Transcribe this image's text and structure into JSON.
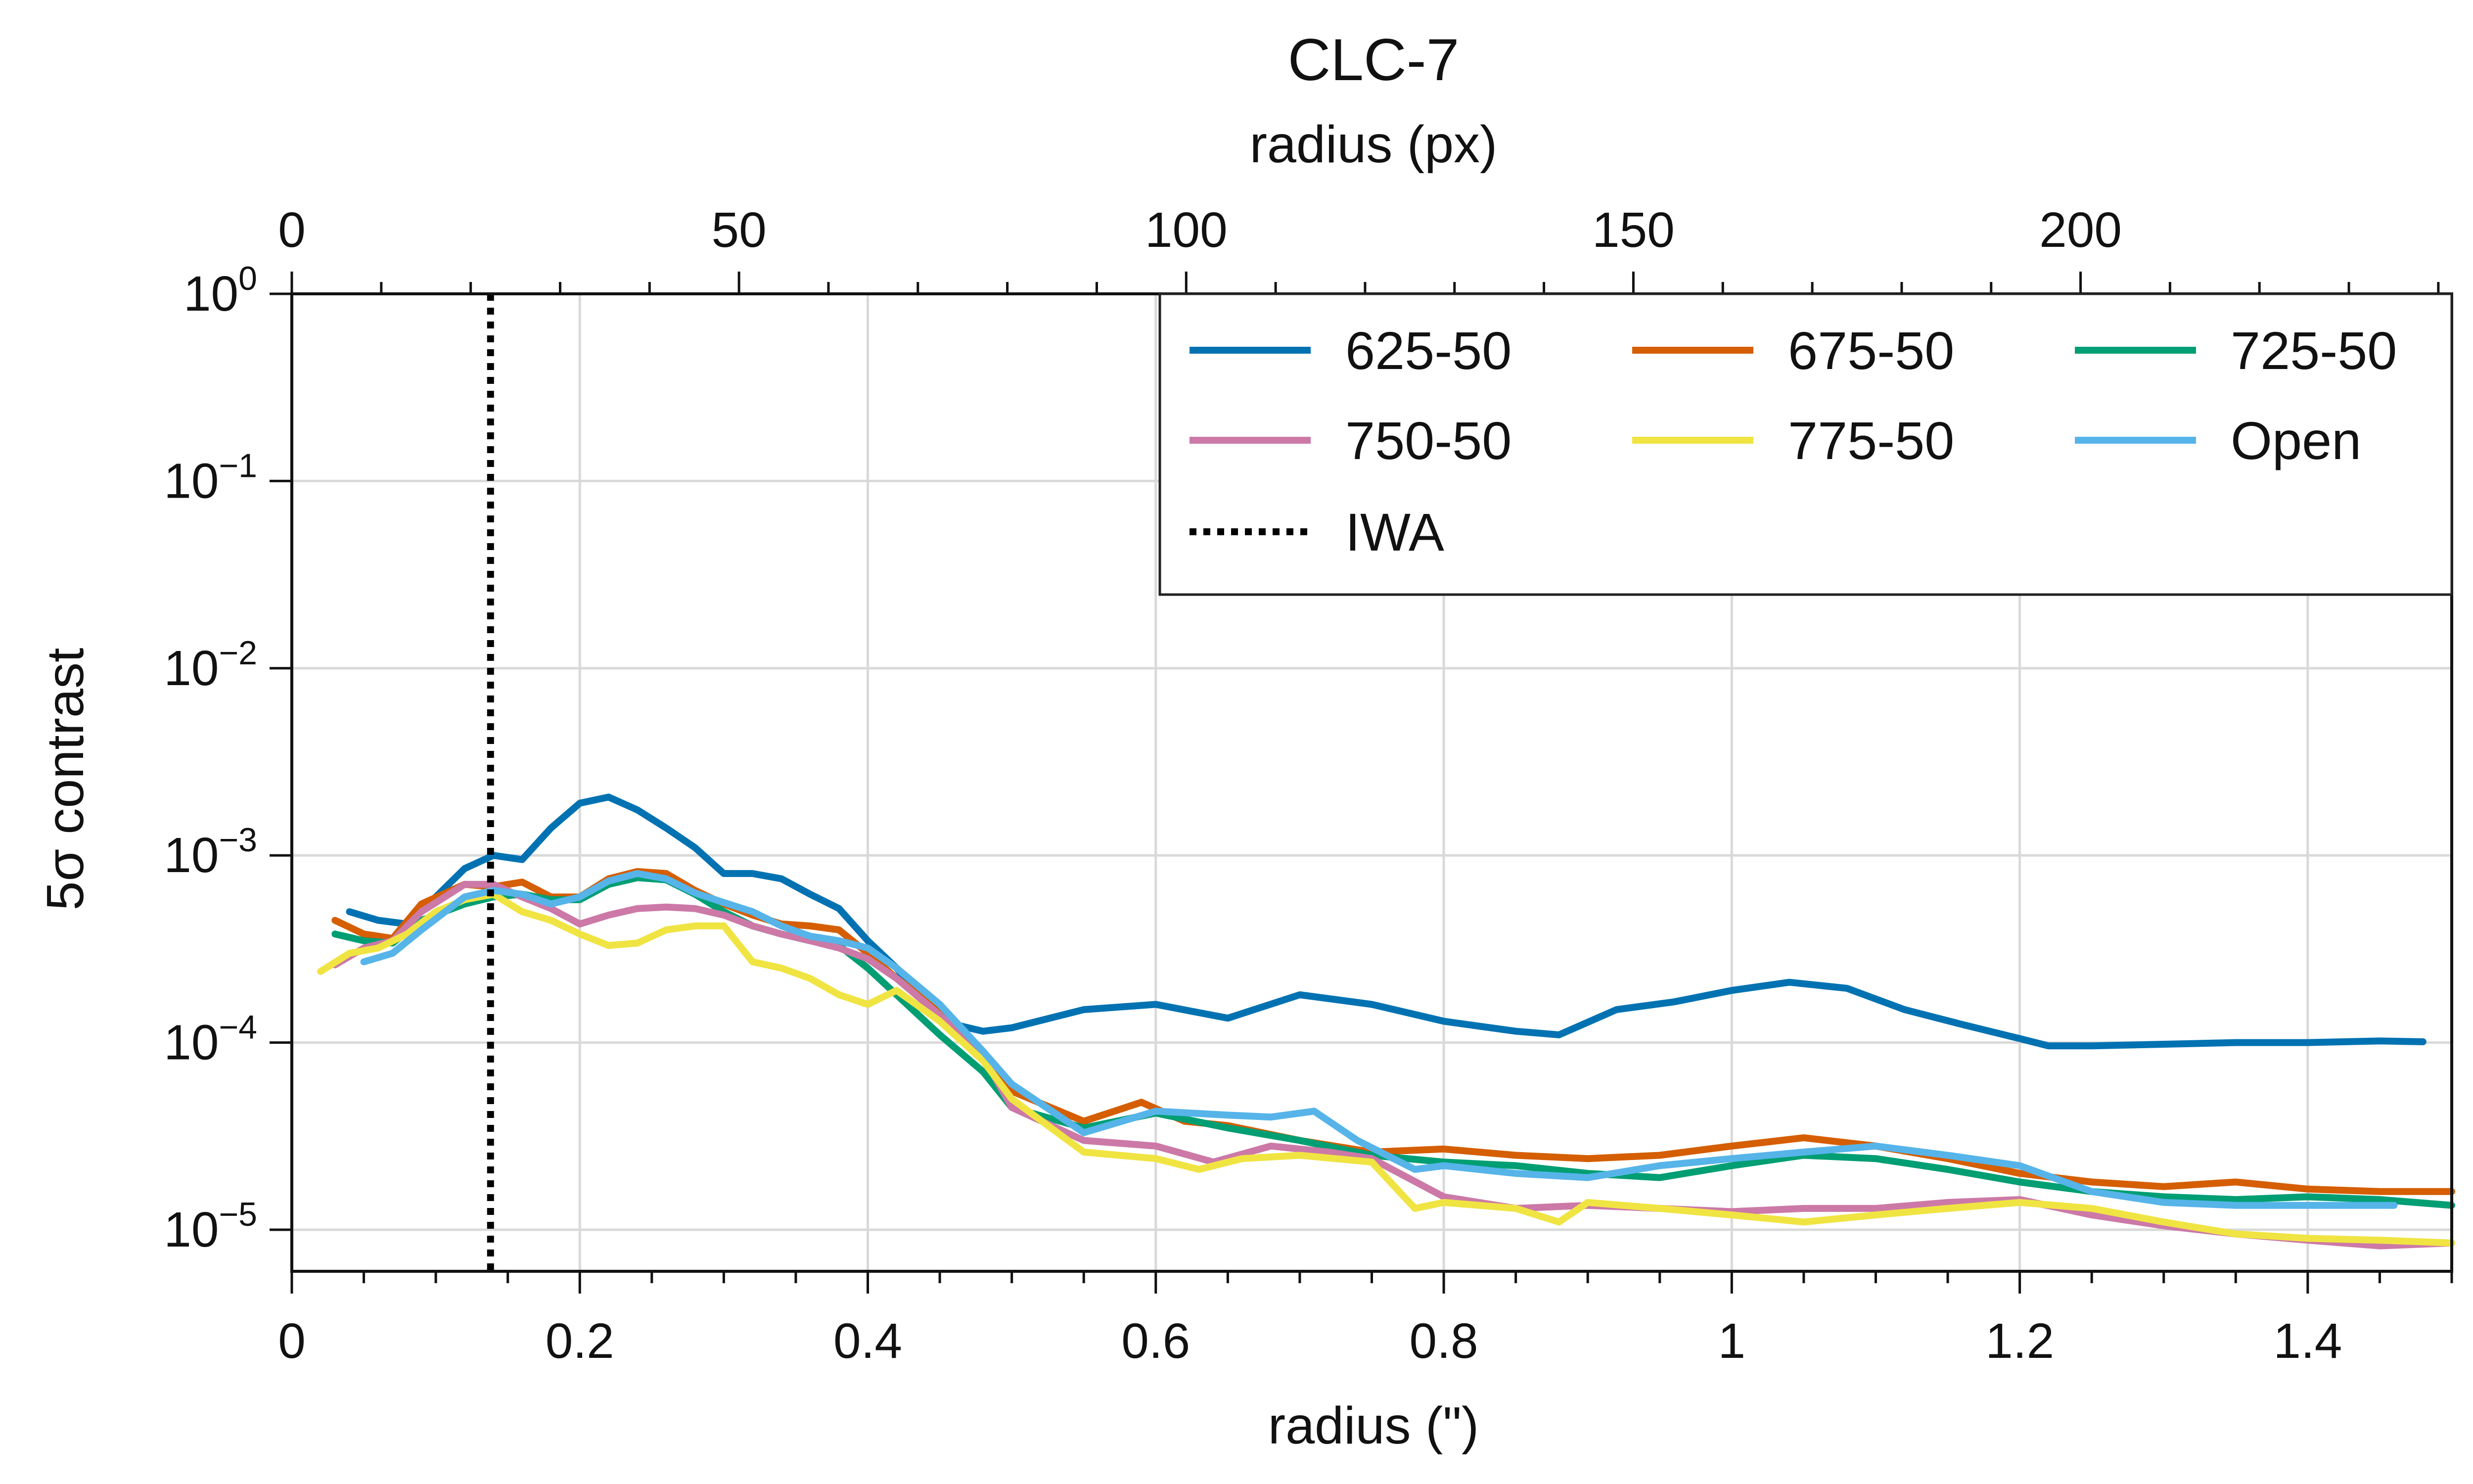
{
  "chart_data": {
    "type": "line",
    "title": "CLC-7",
    "xlabel": "radius (\")",
    "ylabel": "5σ contrast",
    "top_xlabel": "radius (px)",
    "xlim": [
      0,
      1.5
    ],
    "ylim": [
      6e-06,
      1
    ],
    "yscale": "log",
    "top_xlim": [
      0,
      241.5
    ],
    "x_ticks": [
      "0",
      "0.2",
      "0.4",
      "0.6",
      "0.8",
      "1",
      "1.2",
      "1.4"
    ],
    "top_x_ticks": [
      "0",
      "50",
      "100",
      "150",
      "200"
    ],
    "y_ticks": [
      {
        "base": "10",
        "exp": "0"
      },
      {
        "base": "10",
        "exp": "−1"
      },
      {
        "base": "10",
        "exp": "−2"
      },
      {
        "base": "10",
        "exp": "−3"
      },
      {
        "base": "10",
        "exp": "−4"
      },
      {
        "base": "10",
        "exp": "−5"
      }
    ],
    "grid": true,
    "legend_position": "top-right",
    "iwa": {
      "name": "IWA",
      "x": 0.138,
      "color": "#000000",
      "style": "dotted"
    },
    "series": [
      {
        "name": "625-50",
        "color": "#0072b2",
        "x": [
          0.04,
          0.06,
          0.08,
          0.1,
          0.12,
          0.14,
          0.16,
          0.18,
          0.2,
          0.22,
          0.24,
          0.26,
          0.28,
          0.3,
          0.32,
          0.34,
          0.36,
          0.38,
          0.4,
          0.42,
          0.44,
          0.46,
          0.48,
          0.5,
          0.55,
          0.6,
          0.65,
          0.7,
          0.75,
          0.8,
          0.85,
          0.88,
          0.92,
          0.96,
          1.0,
          1.04,
          1.08,
          1.12,
          1.16,
          1.2,
          1.22,
          1.25,
          1.3,
          1.35,
          1.4,
          1.45,
          1.48
        ],
        "y": [
          0.0005,
          0.00045,
          0.00043,
          0.0006,
          0.00085,
          0.001,
          0.00095,
          0.0014,
          0.0019,
          0.00205,
          0.00175,
          0.0014,
          0.0011,
          0.0008,
          0.0008,
          0.00075,
          0.00062,
          0.00052,
          0.00035,
          0.00025,
          0.00016,
          0.000125,
          0.000115,
          0.00012,
          0.00015,
          0.00016,
          0.000135,
          0.00018,
          0.00016,
          0.00013,
          0.000115,
          0.00011,
          0.00015,
          0.000165,
          0.00019,
          0.00021,
          0.000195,
          0.00015,
          0.000125,
          0.000105,
          9.6e-05,
          9.6e-05,
          9.8e-05,
          0.0001,
          0.0001,
          0.000102,
          0.000101
        ]
      },
      {
        "name": "675-50",
        "color": "#d55e00",
        "x": [
          0.03,
          0.05,
          0.07,
          0.09,
          0.12,
          0.14,
          0.16,
          0.18,
          0.2,
          0.22,
          0.24,
          0.26,
          0.28,
          0.3,
          0.32,
          0.34,
          0.36,
          0.38,
          0.4,
          0.42,
          0.45,
          0.48,
          0.5,
          0.55,
          0.59,
          0.62,
          0.65,
          0.7,
          0.75,
          0.8,
          0.85,
          0.9,
          0.95,
          1.0,
          1.05,
          1.1,
          1.15,
          1.2,
          1.25,
          1.3,
          1.35,
          1.4,
          1.45,
          1.5
        ],
        "y": [
          0.00045,
          0.00038,
          0.00036,
          0.00055,
          0.0007,
          0.00068,
          0.00072,
          0.0006,
          0.0006,
          0.00075,
          0.00082,
          0.0008,
          0.00065,
          0.00055,
          0.00048,
          0.00043,
          0.00042,
          0.0004,
          0.0003,
          0.00022,
          0.00015,
          9e-05,
          5.5e-05,
          3.8e-05,
          4.8e-05,
          3.8e-05,
          3.6e-05,
          3e-05,
          2.6e-05,
          2.7e-05,
          2.5e-05,
          2.4e-05,
          2.5e-05,
          2.8e-05,
          3.1e-05,
          2.8e-05,
          2.4e-05,
          2e-05,
          1.8e-05,
          1.7e-05,
          1.8e-05,
          1.65e-05,
          1.6e-05,
          1.6e-05
        ]
      },
      {
        "name": "725-50",
        "color": "#009e73",
        "x": [
          0.03,
          0.05,
          0.07,
          0.09,
          0.12,
          0.14,
          0.16,
          0.18,
          0.2,
          0.22,
          0.24,
          0.26,
          0.28,
          0.3,
          0.32,
          0.34,
          0.36,
          0.38,
          0.4,
          0.42,
          0.45,
          0.48,
          0.5,
          0.55,
          0.6,
          0.65,
          0.7,
          0.75,
          0.8,
          0.85,
          0.9,
          0.95,
          1.0,
          1.05,
          1.1,
          1.15,
          1.2,
          1.25,
          1.3,
          1.35,
          1.4,
          1.45,
          1.5
        ],
        "y": [
          0.00038,
          0.00035,
          0.00034,
          0.00045,
          0.00055,
          0.0006,
          0.00062,
          0.00058,
          0.00058,
          0.0007,
          0.00076,
          0.00074,
          0.00062,
          0.0005,
          0.00042,
          0.00038,
          0.00035,
          0.00033,
          0.00025,
          0.00018,
          0.00011,
          7e-05,
          4.5e-05,
          3.5e-05,
          4.2e-05,
          3.5e-05,
          3e-05,
          2.5e-05,
          2.3e-05,
          2.2e-05,
          2e-05,
          1.9e-05,
          2.2e-05,
          2.5e-05,
          2.4e-05,
          2.1e-05,
          1.8e-05,
          1.6e-05,
          1.5e-05,
          1.45e-05,
          1.5e-05,
          1.45e-05,
          1.35e-05
        ]
      },
      {
        "name": "750-50",
        "color": "#cc79a7",
        "x": [
          0.03,
          0.05,
          0.07,
          0.09,
          0.12,
          0.14,
          0.16,
          0.18,
          0.2,
          0.22,
          0.24,
          0.26,
          0.28,
          0.3,
          0.32,
          0.34,
          0.36,
          0.38,
          0.4,
          0.42,
          0.45,
          0.48,
          0.5,
          0.55,
          0.6,
          0.64,
          0.68,
          0.72,
          0.75,
          0.8,
          0.85,
          0.9,
          0.95,
          1.0,
          1.05,
          1.1,
          1.15,
          1.2,
          1.25,
          1.3,
          1.35,
          1.4,
          1.45,
          1.5
        ],
        "y": [
          0.00026,
          0.00032,
          0.00035,
          0.0005,
          0.0007,
          0.0007,
          0.0006,
          0.00052,
          0.00043,
          0.00048,
          0.00052,
          0.00053,
          0.00052,
          0.00048,
          0.00042,
          0.00038,
          0.00035,
          0.00032,
          0.00028,
          0.00022,
          0.00014,
          8.5e-05,
          4.5e-05,
          3e-05,
          2.8e-05,
          2.3e-05,
          2.8e-05,
          2.6e-05,
          2.4e-05,
          1.5e-05,
          1.3e-05,
          1.35e-05,
          1.3e-05,
          1.25e-05,
          1.3e-05,
          1.3e-05,
          1.4e-05,
          1.45e-05,
          1.2e-05,
          1.05e-05,
          9.5e-06,
          8.8e-06,
          8.2e-06,
          8.5e-06
        ]
      },
      {
        "name": "775-50",
        "color": "#f0e442",
        "x": [
          0.02,
          0.04,
          0.06,
          0.08,
          0.1,
          0.12,
          0.14,
          0.16,
          0.18,
          0.2,
          0.22,
          0.24,
          0.26,
          0.28,
          0.3,
          0.32,
          0.34,
          0.36,
          0.38,
          0.4,
          0.42,
          0.45,
          0.48,
          0.5,
          0.55,
          0.6,
          0.63,
          0.66,
          0.7,
          0.75,
          0.78,
          0.8,
          0.85,
          0.88,
          0.9,
          0.95,
          1.0,
          1.05,
          1.1,
          1.15,
          1.2,
          1.25,
          1.3,
          1.35,
          1.4,
          1.45,
          1.5
        ],
        "y": [
          0.00024,
          0.0003,
          0.00032,
          0.00038,
          0.0005,
          0.00058,
          0.00062,
          0.0005,
          0.00045,
          0.00038,
          0.00033,
          0.00034,
          0.0004,
          0.00042,
          0.00042,
          0.00027,
          0.00025,
          0.00022,
          0.00018,
          0.00016,
          0.00019,
          0.00013,
          8e-05,
          5e-05,
          2.6e-05,
          2.4e-05,
          2.1e-05,
          2.4e-05,
          2.5e-05,
          2.3e-05,
          1.3e-05,
          1.4e-05,
          1.3e-05,
          1.1e-05,
          1.4e-05,
          1.3e-05,
          1.2e-05,
          1.1e-05,
          1.2e-05,
          1.3e-05,
          1.4e-05,
          1.3e-05,
          1.1e-05,
          9.5e-06,
          9e-06,
          8.8e-06,
          8.5e-06
        ]
      },
      {
        "name": "Open",
        "color": "#56b4e9",
        "x": [
          0.05,
          0.07,
          0.09,
          0.12,
          0.14,
          0.16,
          0.18,
          0.2,
          0.22,
          0.24,
          0.26,
          0.28,
          0.3,
          0.32,
          0.34,
          0.36,
          0.38,
          0.4,
          0.42,
          0.45,
          0.48,
          0.5,
          0.55,
          0.6,
          0.65,
          0.68,
          0.71,
          0.74,
          0.78,
          0.8,
          0.85,
          0.9,
          0.95,
          1.0,
          1.05,
          1.1,
          1.15,
          1.2,
          1.25,
          1.3,
          1.35,
          1.4,
          1.46
        ],
        "y": [
          0.00027,
          0.0003,
          0.0004,
          0.0006,
          0.00065,
          0.00062,
          0.00055,
          0.0006,
          0.00073,
          0.0008,
          0.00075,
          0.00063,
          0.00056,
          0.0005,
          0.00042,
          0.00037,
          0.00035,
          0.00032,
          0.00025,
          0.00016,
          9e-05,
          6e-05,
          3.3e-05,
          4.3e-05,
          4.1e-05,
          4e-05,
          4.3e-05,
          3e-05,
          2.1e-05,
          2.2e-05,
          2e-05,
          1.9e-05,
          2.2e-05,
          2.4e-05,
          2.6e-05,
          2.8e-05,
          2.5e-05,
          2.2e-05,
          1.6e-05,
          1.4e-05,
          1.35e-05,
          1.35e-05,
          1.35e-05
        ]
      }
    ]
  }
}
